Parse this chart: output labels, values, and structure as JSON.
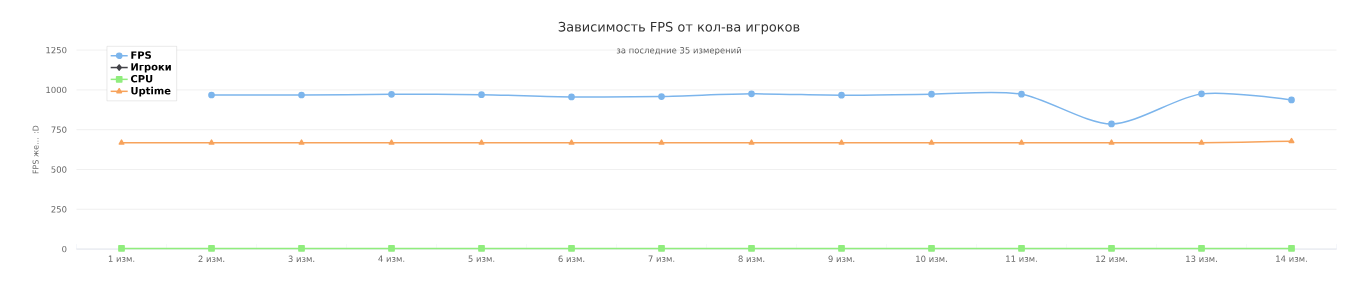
{
  "chart_data": {
    "type": "line",
    "title": "Зависимость FPS от кол-ва игроков",
    "subtitle": "за последние 35 измерений",
    "ylabel": "FPS же... :D",
    "categories": [
      "1 изм.",
      "2 изм.",
      "3 изм.",
      "4 изм.",
      "5 изм.",
      "6 изм.",
      "7 изм.",
      "8 изм.",
      "9 изм.",
      "10 изм.",
      "11 изм.",
      "12 изм.",
      "13 изм.",
      "14 изм."
    ],
    "series": [
      {
        "name": "FPS",
        "color": "#7cb5ec",
        "marker": "circle",
        "values": [
          null,
          968,
          968,
          972,
          970,
          956,
          958,
          975,
          967,
          973,
          973,
          786,
          975,
          937
        ]
      },
      {
        "name": "Игроки",
        "color": "#434348",
        "marker": "diamond",
        "values": [
          null,
          null,
          null,
          null,
          null,
          null,
          null,
          null,
          null,
          null,
          null,
          null,
          null,
          null
        ]
      },
      {
        "name": "CPU",
        "color": "#90ed7d",
        "marker": "square",
        "values": [
          4,
          4,
          4,
          4,
          4,
          4,
          4,
          4,
          4,
          4,
          4,
          4,
          4,
          4
        ]
      },
      {
        "name": "Uptime",
        "color": "#f7a35c",
        "marker": "triangle",
        "values": [
          668,
          668,
          668,
          668,
          668,
          668,
          668,
          668,
          668,
          668,
          668,
          668,
          668,
          678
        ]
      }
    ],
    "ylim": [
      0,
      1250
    ],
    "yticks": [
      0,
      250,
      500,
      750,
      1000,
      1250
    ],
    "grid": "y",
    "legend": "top left"
  }
}
